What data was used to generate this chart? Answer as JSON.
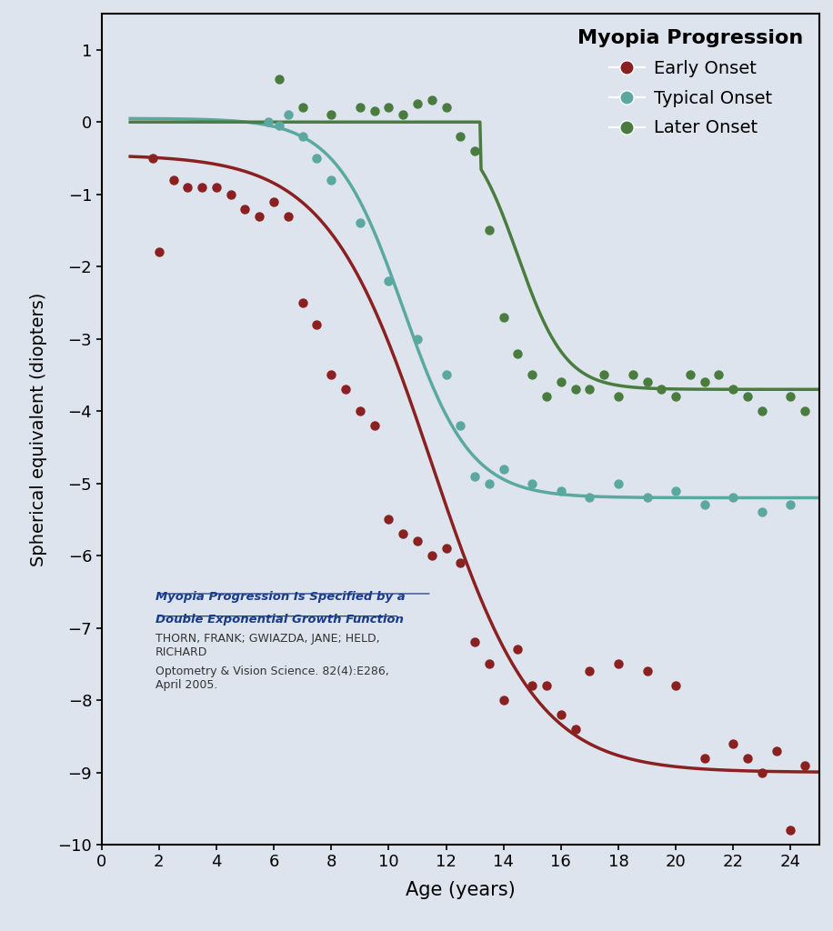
{
  "title": "Myopia Progression",
  "xlabel": "Age (years)",
  "ylabel": "Spherical equivalent (diopters)",
  "xlim": [
    0,
    25
  ],
  "ylim": [
    -10,
    1.5
  ],
  "xticks": [
    0,
    2,
    4,
    6,
    8,
    10,
    12,
    14,
    16,
    18,
    20,
    22,
    24
  ],
  "yticks": [
    1,
    0,
    -1,
    -2,
    -3,
    -4,
    -5,
    -6,
    -7,
    -8,
    -9,
    -10
  ],
  "bg_color": "#dde4ed",
  "early_color": "#8b2020",
  "typical_color": "#5ba8a0",
  "later_color": "#4a7c3f",
  "annotation_link_line1": "Myopia Progression Is Specified by a",
  "annotation_link_line2": "Double Exponential Growth Function",
  "annotation_authors": "THORN, FRANK; GWIAZDA, JANE; HELD,\nRICHARD",
  "annotation_journal": "Optometry & Vision Science. 82(4):E286,\nApril 2005.",
  "early_scatter_x": [
    1.8,
    2.0,
    2.5,
    3.0,
    3.5,
    4.0,
    4.5,
    5.0,
    5.5,
    6.0,
    6.5,
    7.0,
    7.5,
    8.0,
    8.5,
    9.0,
    9.5,
    10.0,
    10.5,
    11.0,
    11.5,
    12.0,
    12.5,
    13.0,
    13.5,
    14.0,
    14.5,
    15.0,
    15.5,
    16.0,
    16.5,
    17.0,
    18.0,
    19.0,
    20.0,
    21.0,
    22.0,
    22.5,
    23.0,
    23.5,
    24.0,
    24.5
  ],
  "early_scatter_y": [
    -0.5,
    -1.8,
    -0.8,
    -0.9,
    -0.9,
    -0.9,
    -1.0,
    -1.2,
    -1.3,
    -1.1,
    -1.3,
    -2.5,
    -2.8,
    -3.5,
    -3.7,
    -4.0,
    -4.2,
    -5.5,
    -5.7,
    -5.8,
    -6.0,
    -5.9,
    -6.1,
    -7.2,
    -7.5,
    -8.0,
    -7.3,
    -7.8,
    -7.8,
    -8.2,
    -8.4,
    -7.6,
    -7.5,
    -7.6,
    -7.8,
    -8.8,
    -8.6,
    -8.8,
    -9.0,
    -8.7,
    -9.8,
    -8.9
  ],
  "typical_scatter_x": [
    5.8,
    6.2,
    6.5,
    7.0,
    7.5,
    8.0,
    9.0,
    10.0,
    11.0,
    12.0,
    12.5,
    13.0,
    13.5,
    14.0,
    15.0,
    16.0,
    17.0,
    18.0,
    19.0,
    20.0,
    21.0,
    22.0,
    23.0,
    24.0
  ],
  "typical_scatter_y": [
    0.0,
    -0.05,
    0.1,
    -0.2,
    -0.5,
    -0.8,
    -1.4,
    -2.2,
    -3.0,
    -3.5,
    -4.2,
    -4.9,
    -5.0,
    -4.8,
    -5.0,
    -5.1,
    -5.2,
    -5.0,
    -5.2,
    -5.1,
    -5.3,
    -5.2,
    -5.4,
    -5.3
  ],
  "typical_scatter_x2": [
    6.0
  ],
  "typical_scatter_y2": [
    -0.1
  ],
  "later_scatter_x": [
    6.2,
    7.0,
    8.0,
    9.0,
    9.5,
    10.0,
    10.5,
    11.0,
    11.5,
    12.0,
    12.5,
    13.0,
    13.5,
    14.0,
    14.5,
    15.0,
    15.5,
    16.0,
    16.5,
    17.0,
    17.5,
    18.0,
    18.5,
    19.0,
    19.5,
    20.0,
    20.5,
    21.0,
    21.5,
    22.0,
    22.5,
    23.0,
    24.0,
    24.5
  ],
  "later_scatter_y": [
    0.6,
    0.2,
    0.1,
    0.2,
    0.15,
    0.2,
    0.1,
    0.25,
    0.3,
    0.2,
    -0.2,
    -0.4,
    -1.5,
    -2.7,
    -3.2,
    -3.5,
    -3.8,
    -3.6,
    -3.7,
    -3.7,
    -3.5,
    -3.8,
    -3.5,
    -3.6,
    -3.7,
    -3.8,
    -3.5,
    -3.6,
    -3.5,
    -3.7,
    -3.8,
    -4.0,
    -3.8,
    -4.0
  ]
}
